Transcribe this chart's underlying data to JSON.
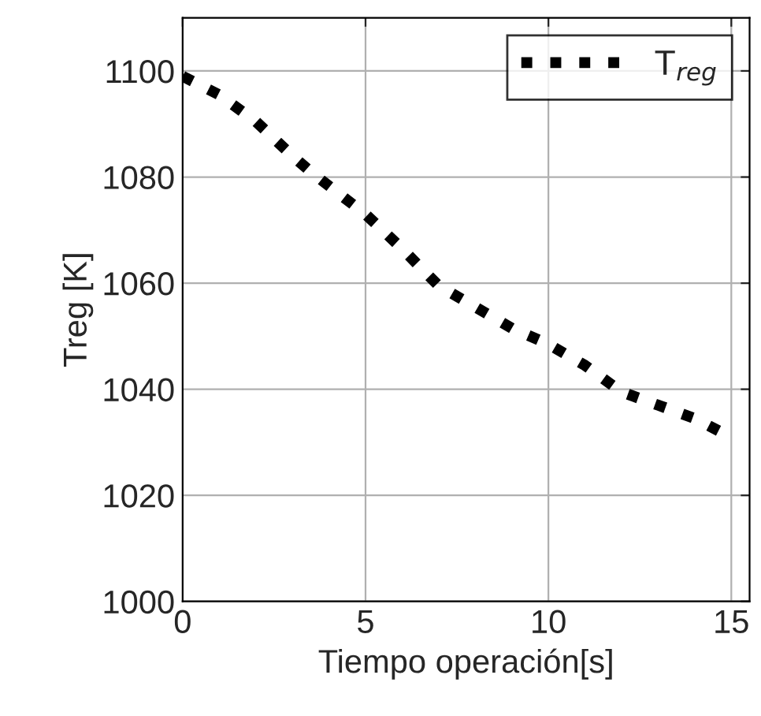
{
  "chart_data": {
    "type": "line",
    "xlabel": "Tiempo operación[s]",
    "ylabel": "Treg [K]",
    "x": [
      0,
      1,
      2,
      3,
      3.5,
      5,
      6,
      7,
      8,
      9,
      10,
      11,
      12,
      13,
      14,
      14.7
    ],
    "series": [
      {
        "name": "T$_{reg}$",
        "color": "#000000",
        "values": [
          1099,
          1095.5,
          1090.5,
          1084,
          1081,
          1073,
          1066.5,
          1059.5,
          1055.5,
          1051.5,
          1048.5,
          1044.5,
          1039.5,
          1037,
          1034.5,
          1032
        ]
      }
    ],
    "xlim": [
      0,
      15.5
    ],
    "xticks": [
      0,
      5,
      10,
      15
    ],
    "ylim": [
      1000,
      1110
    ],
    "yticks": [
      1000,
      1020,
      1040,
      1060,
      1080,
      1100
    ],
    "grid": true,
    "legend": "top right",
    "line_style": "dotted",
    "marker": "none"
  }
}
